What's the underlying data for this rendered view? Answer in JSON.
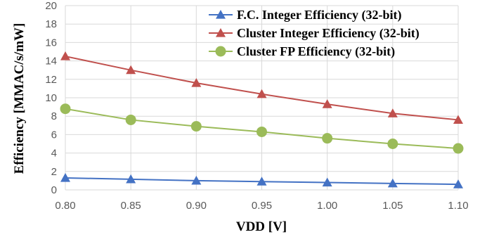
{
  "chart_data": {
    "type": "line",
    "xlabel": "VDD [V]",
    "ylabel": "Efficiency [MMAC/s/mW]",
    "x": [
      "0.80",
      "0.85",
      "0.90",
      "0.95",
      "1.00",
      "1.05",
      "1.10"
    ],
    "xlim": [
      0.8,
      1.1
    ],
    "ylim": [
      0,
      20
    ],
    "yticks": [
      "0",
      "2",
      "4",
      "6",
      "8",
      "10",
      "12",
      "14",
      "16",
      "18",
      "20"
    ],
    "grid": true,
    "legend_position": "top-right",
    "series": [
      {
        "name": "F.C. Integer Efficiency (32-bit)",
        "marker": "triangle",
        "color": "#4472c4",
        "values": [
          1.3,
          1.15,
          1.0,
          0.9,
          0.8,
          0.7,
          0.6
        ]
      },
      {
        "name": "Cluster Integer Efficiency (32-bit)",
        "marker": "triangle",
        "color": "#c0504d",
        "values": [
          14.5,
          13.0,
          11.6,
          10.4,
          9.3,
          8.3,
          7.6
        ]
      },
      {
        "name": "Cluster FP Efficiency (32-bit)",
        "marker": "circle",
        "color": "#9bbb59",
        "values": [
          8.8,
          7.6,
          6.9,
          6.3,
          5.6,
          5.0,
          4.5
        ]
      }
    ]
  }
}
